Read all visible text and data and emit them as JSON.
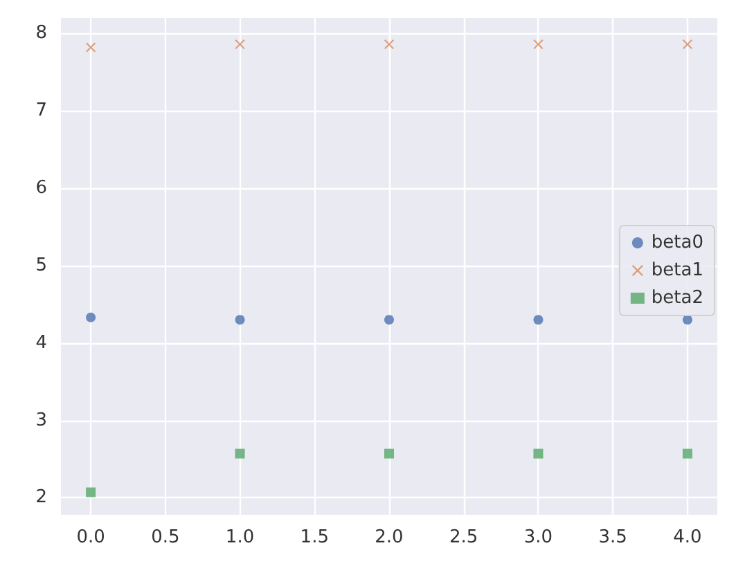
{
  "chart_data": {
    "type": "scatter",
    "x": [
      0,
      1,
      2,
      3,
      4
    ],
    "series": [
      {
        "name": "beta0",
        "color": "#4c72b0",
        "marker": "circle",
        "values": [
          4.33,
          4.3,
          4.3,
          4.3,
          4.3
        ]
      },
      {
        "name": "beta1",
        "color": "#dd8452",
        "marker": "cross",
        "values": [
          7.82,
          7.86,
          7.86,
          7.86,
          7.86
        ]
      },
      {
        "name": "beta2",
        "color": "#55a868",
        "marker": "square",
        "values": [
          2.07,
          2.57,
          2.57,
          2.57,
          2.57
        ]
      }
    ],
    "xlim": [
      -0.2,
      4.2
    ],
    "xticks": [
      {
        "value": 0,
        "label": "0.0"
      },
      {
        "value": 0.5,
        "label": "0.5"
      },
      {
        "value": 1,
        "label": "1.0"
      },
      {
        "value": 1.5,
        "label": "1.5"
      },
      {
        "value": 2,
        "label": "2.0"
      },
      {
        "value": 2.5,
        "label": "2.5"
      },
      {
        "value": 3,
        "label": "3.0"
      },
      {
        "value": 3.5,
        "label": "3.5"
      },
      {
        "value": 4,
        "label": "4.0"
      }
    ],
    "ylim": [
      1.78,
      8.2
    ],
    "yticks": [
      2,
      3,
      4,
      5,
      6,
      7,
      8
    ],
    "grid": true,
    "legend": "right"
  }
}
